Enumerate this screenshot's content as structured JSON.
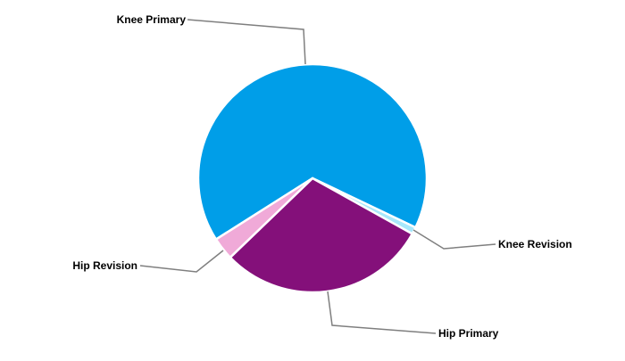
{
  "chart_data": {
    "type": "pie",
    "categories": [
      "Knee Primary",
      "Knee Revision",
      "Hip Primary",
      "Hip Revision"
    ],
    "values": [
      66.1,
      1.0,
      29.7,
      3.2
    ],
    "colors": [
      "#009EE8",
      "#A8E8FB",
      "#84107A",
      "#F0AAD8"
    ],
    "legend": "none (leader-line labels)"
  }
}
